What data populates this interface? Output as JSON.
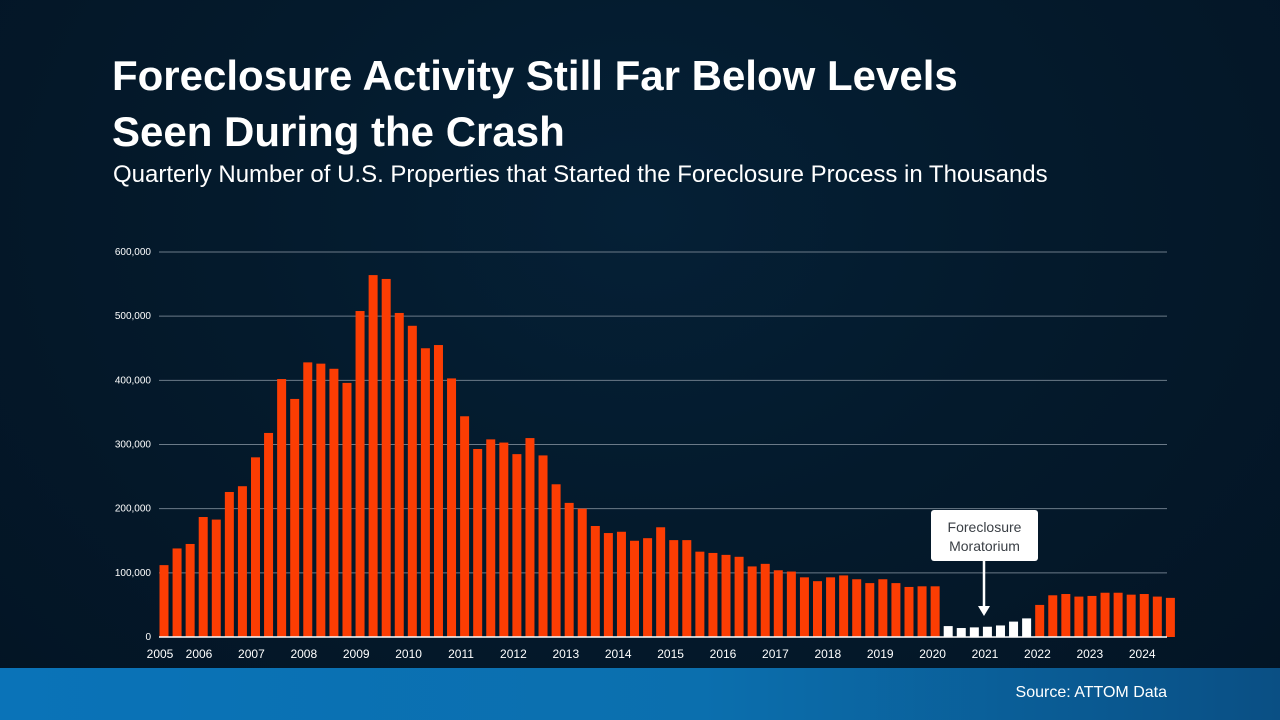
{
  "title_line1": "Foreclosure Activity Still Far Below Levels",
  "title_line2": "Seen During the Crash",
  "subtitle": "Quarterly Number of U.S. Properties that Started the Foreclosure Process in Thousands",
  "source": "Source: ATTOM Data",
  "colors": {
    "bar": "#fc3d03",
    "bar_moratorium": "#ffffff",
    "gridline": "#6b7a88",
    "axis_text": "#ffffff"
  },
  "chart_data": {
    "type": "bar",
    "title": "Foreclosure Activity Still Far Below Levels Seen During the Crash",
    "ylabel": "",
    "xlabel": "",
    "ylim": [
      0,
      600000
    ],
    "y_ticks": [
      "0",
      "100,000",
      "200,000",
      "300,000",
      "400,000",
      "500,000",
      "600,000"
    ],
    "x_ticks": [
      "2005",
      "2006",
      "2007",
      "2008",
      "2009",
      "2010",
      "2011",
      "2012",
      "2013",
      "2014",
      "2015",
      "2016",
      "2017",
      "2018",
      "2019",
      "2020",
      "2021",
      "2022",
      "2023",
      "2024"
    ],
    "values": [
      112000,
      138000,
      145000,
      187000,
      183000,
      226000,
      235000,
      280000,
      318000,
      402000,
      371000,
      428000,
      426000,
      418000,
      396000,
      508000,
      564000,
      558000,
      505000,
      485000,
      450000,
      455000,
      403000,
      344000,
      293000,
      308000,
      303000,
      285000,
      310000,
      283000,
      238000,
      209000,
      200000,
      173000,
      162000,
      164000,
      150000,
      154000,
      171000,
      151000,
      151000,
      133000,
      131000,
      128000,
      125000,
      110000,
      114000,
      104000,
      102000,
      93000,
      87000,
      93000,
      96000,
      90000,
      84000,
      90000,
      84000,
      78000,
      79000,
      79000,
      17000,
      14000,
      15000,
      16000,
      18000,
      24000,
      29000,
      50000,
      65000,
      67000,
      63000,
      64000,
      69000,
      69000,
      66000,
      67000,
      63000,
      61000
    ],
    "moratorium_range": [
      60,
      66
    ],
    "annotation": {
      "line1": "Foreclosure",
      "line2": "Moratorium",
      "bar_index": 64
    }
  }
}
